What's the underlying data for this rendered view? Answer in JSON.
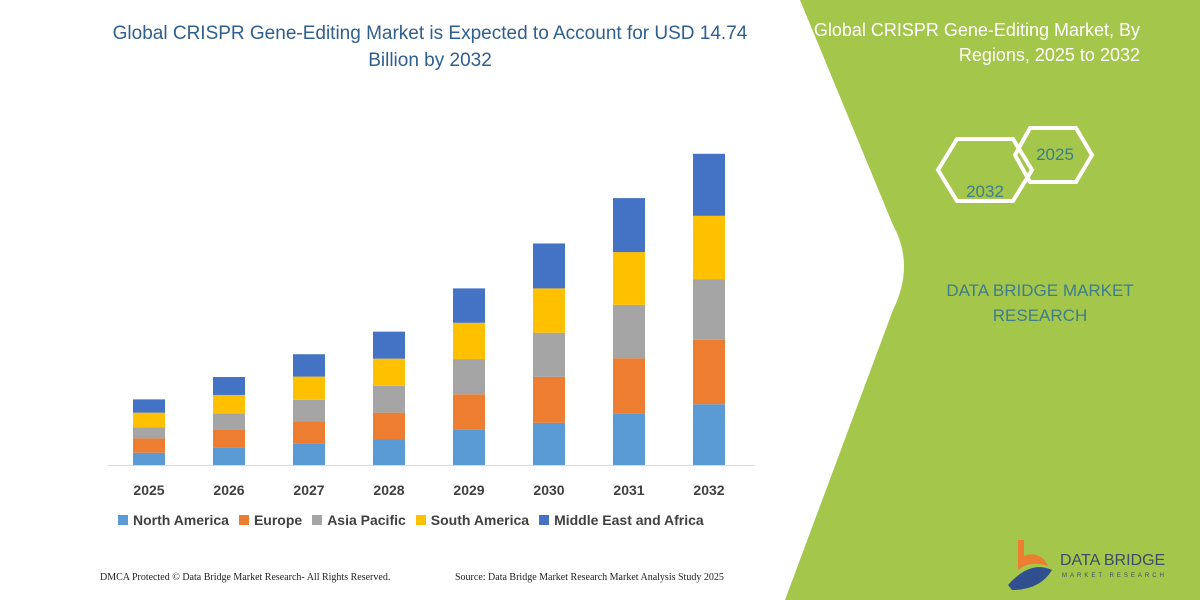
{
  "title": "Global CRISPR Gene-Editing Market is Expected to Account for USD 14.74 Billion by 2032",
  "panel": {
    "title": "Global CRISPR Gene-Editing Market, By Regions, 2025 to 2032",
    "hex_start": "2025",
    "hex_end": "2032",
    "brand": "DATA BRIDGE MARKET RESEARCH",
    "logo_text": "DATA BRIDGE",
    "logo_sub": "MARKET RESEARCH",
    "green": "#A4C64A"
  },
  "footer": {
    "left": "DMCA Protected © Data Bridge Market Research-  All Rights Reserved.",
    "right": "Source: Data Bridge Market Research  Market Analysis Study 2025"
  },
  "chart_data": {
    "type": "bar",
    "stacked": true,
    "title": "Global CRISPR Gene-Editing Market is Expected to Account for USD 14.74 Billion by 2032",
    "categories": [
      "2025",
      "2026",
      "2027",
      "2028",
      "2029",
      "2030",
      "2031",
      "2032"
    ],
    "series": [
      {
        "name": "North America",
        "color": "#5B9BD5",
        "values": [
          0.58,
          0.84,
          1.03,
          1.23,
          1.69,
          2.0,
          2.45,
          2.88
        ]
      },
      {
        "name": "Europe",
        "color": "#ED7D31",
        "values": [
          0.68,
          0.85,
          1.03,
          1.25,
          1.66,
          2.18,
          2.61,
          3.05
        ]
      },
      {
        "name": "Asia Pacific",
        "color": "#A5A5A5",
        "values": [
          0.52,
          0.76,
          1.03,
          1.27,
          1.67,
          2.09,
          2.53,
          2.88
        ]
      },
      {
        "name": "South America",
        "color": "#FFC000",
        "values": [
          0.7,
          0.87,
          1.1,
          1.29,
          1.72,
          2.1,
          2.5,
          3.0
        ]
      },
      {
        "name": "Middle East and Africa",
        "color": "#4472C4",
        "values": [
          0.63,
          0.85,
          1.06,
          1.28,
          1.63,
          2.13,
          2.56,
          2.94
        ]
      }
    ],
    "ylim": [
      0,
      14.74
    ],
    "grid": false,
    "legend": "bottom",
    "xlabel": "",
    "ylabel": ""
  }
}
